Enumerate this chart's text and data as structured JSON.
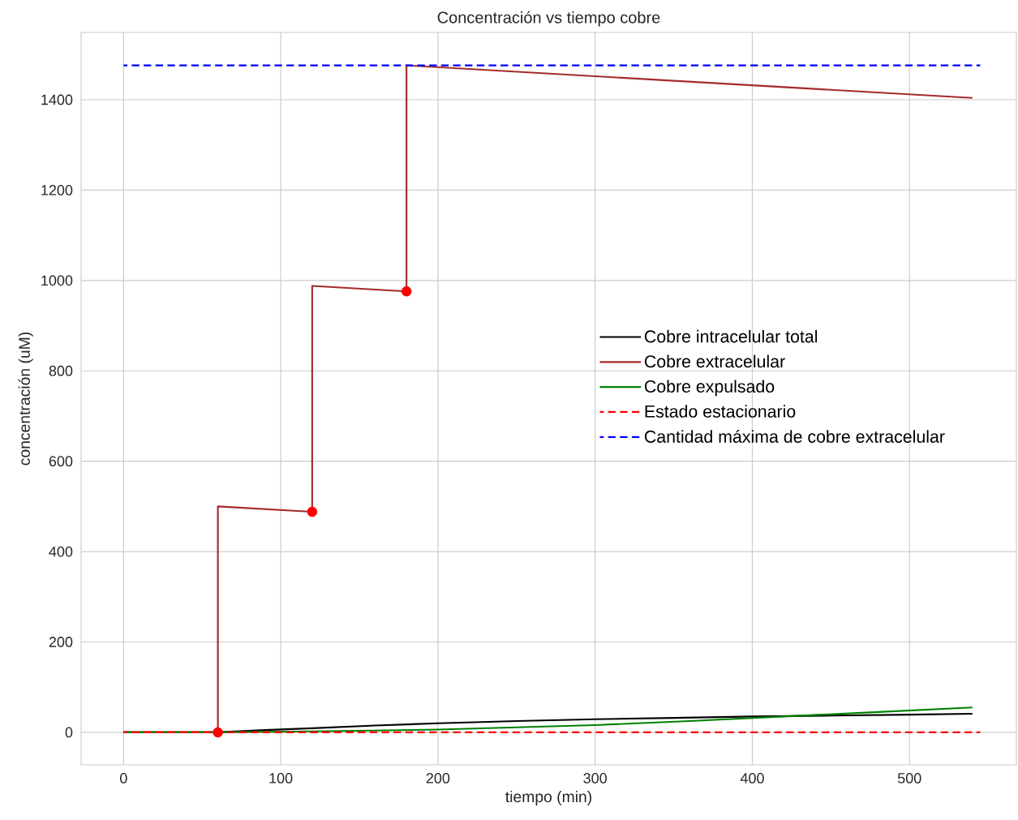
{
  "chart_data": {
    "type": "line",
    "title": "Concentración vs tiempo cobre",
    "xlabel": "tiempo (min)",
    "ylabel": "concentración (uM)",
    "xlim": [
      -27,
      568
    ],
    "ylim": [
      -72,
      1549
    ],
    "xticks": [
      0,
      100,
      200,
      300,
      400,
      500
    ],
    "yticks": [
      0,
      200,
      400,
      600,
      800,
      1000,
      1200,
      1400
    ],
    "grid": true,
    "legend": "right",
    "series": [
      {
        "name": "Cobre intracelular total",
        "color": "#000000",
        "x": [
          0,
          60,
          90,
          120,
          160,
          200,
          250,
          300,
          350,
          400,
          450,
          500,
          540
        ],
        "values": [
          0,
          0,
          5,
          9,
          15,
          20,
          25,
          29,
          32,
          35,
          37,
          39,
          41
        ]
      },
      {
        "name": "Cobre extracelular",
        "color": "#a52a2a",
        "x": [
          0,
          60,
          60,
          120,
          120,
          180,
          180,
          540
        ],
        "values": [
          0,
          0,
          500,
          488,
          988,
          976,
          1476,
          1404
        ]
      },
      {
        "name": "Cobre expulsado",
        "color": "#008000",
        "x": [
          0,
          60,
          120,
          200,
          300,
          360,
          420,
          480,
          540
        ],
        "values": [
          0,
          0,
          2,
          6,
          16,
          25,
          35,
          45,
          55
        ]
      },
      {
        "name": "Estado estacionario",
        "color": "#ff0000",
        "line_style": "dashed",
        "x": [
          0,
          545
        ],
        "values": [
          0,
          0
        ]
      },
      {
        "name": "Cantidad máxima de cobre extracelular",
        "color": "#0000ff",
        "line_style": "dashed",
        "x": [
          0,
          545
        ],
        "values": [
          1476,
          1476
        ]
      },
      {
        "type": "scatter",
        "color": "#ff0000",
        "marker": "circle",
        "x": [
          60,
          120,
          180
        ],
        "values": [
          0,
          488,
          976
        ]
      }
    ]
  }
}
